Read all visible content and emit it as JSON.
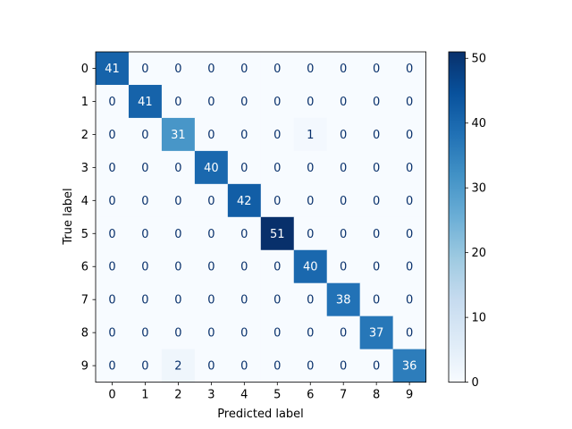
{
  "chart_data": {
    "type": "heatmap",
    "title": "",
    "xlabel": "Predicted label",
    "ylabel": "True label",
    "x_categories": [
      "0",
      "1",
      "2",
      "3",
      "4",
      "5",
      "6",
      "7",
      "8",
      "9"
    ],
    "y_categories": [
      "0",
      "1",
      "2",
      "3",
      "4",
      "5",
      "6",
      "7",
      "8",
      "9"
    ],
    "matrix": [
      [
        41,
        0,
        0,
        0,
        0,
        0,
        0,
        0,
        0,
        0
      ],
      [
        0,
        41,
        0,
        0,
        0,
        0,
        0,
        0,
        0,
        0
      ],
      [
        0,
        0,
        31,
        0,
        0,
        0,
        1,
        0,
        0,
        0
      ],
      [
        0,
        0,
        0,
        40,
        0,
        0,
        0,
        0,
        0,
        0
      ],
      [
        0,
        0,
        0,
        0,
        42,
        0,
        0,
        0,
        0,
        0
      ],
      [
        0,
        0,
        0,
        0,
        0,
        51,
        0,
        0,
        0,
        0
      ],
      [
        0,
        0,
        0,
        0,
        0,
        0,
        40,
        0,
        0,
        0
      ],
      [
        0,
        0,
        0,
        0,
        0,
        0,
        0,
        38,
        0,
        0
      ],
      [
        0,
        0,
        0,
        0,
        0,
        0,
        0,
        0,
        37,
        0
      ],
      [
        0,
        0,
        2,
        0,
        0,
        0,
        0,
        0,
        0,
        36
      ]
    ],
    "colormap": "Blues",
    "vmin": 0,
    "vmax": 51,
    "colorbar_ticks": [
      "0",
      "10",
      "20",
      "30",
      "40",
      "50"
    ],
    "grid": false
  }
}
